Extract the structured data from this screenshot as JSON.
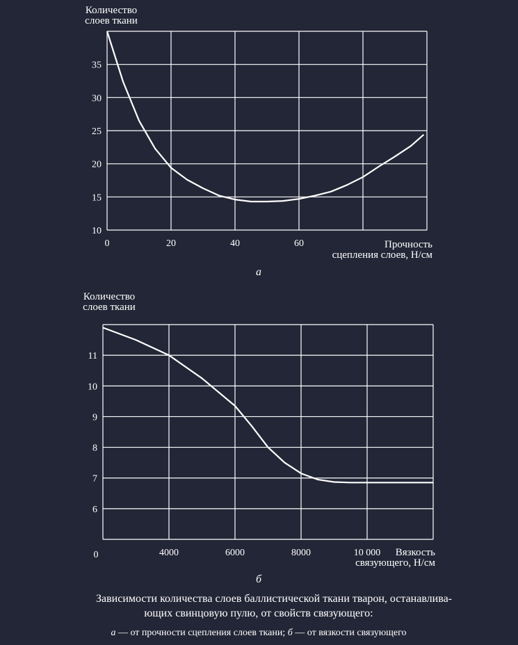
{
  "chart_data": [
    {
      "type": "line",
      "panel_label": "а",
      "ylabel": [
        "Количество",
        "слоев ткани"
      ],
      "xlabel": [
        "Прочность",
        "сцепления слоев, Н/см"
      ],
      "xlim": [
        0,
        100
      ],
      "ylim": [
        10,
        40
      ],
      "xticks": [
        0,
        20,
        40,
        60
      ],
      "xtick_labels": [
        "0",
        "20",
        "40",
        "60"
      ],
      "yticks": [
        10,
        15,
        20,
        25,
        30,
        35
      ],
      "ytick_labels": [
        "10",
        "15",
        "20",
        "25",
        "30",
        "35"
      ],
      "grid_x": [
        0,
        20,
        40,
        60,
        80,
        100
      ],
      "grid_y": [
        10,
        15,
        20,
        25,
        30,
        35,
        40
      ],
      "grid": true,
      "series": [
        {
          "x": [
            0,
            5,
            10,
            15,
            20,
            25,
            30,
            35,
            40,
            45,
            50,
            55,
            60,
            65,
            70,
            75,
            80,
            85,
            90,
            95,
            99
          ],
          "values": [
            40,
            32.4,
            26.5,
            22.3,
            19.4,
            17.6,
            16.3,
            15.2,
            14.6,
            14.3,
            14.3,
            14.4,
            14.7,
            15.2,
            15.8,
            16.8,
            18.0,
            19.6,
            21.1,
            22.7,
            24.4
          ]
        }
      ]
    },
    {
      "type": "line",
      "panel_label": "б",
      "ylabel": [
        "Количество",
        "слоев ткани"
      ],
      "xlabel": [
        "Вязкость",
        "связующего, Н/см"
      ],
      "xlim": [
        2000,
        12000
      ],
      "ylim": [
        5,
        12
      ],
      "x_origin_label": "0",
      "xticks": [
        4000,
        6000,
        8000,
        10000
      ],
      "xtick_labels": [
        "4000",
        "6000",
        "8000",
        "10 000"
      ],
      "yticks": [
        6,
        7,
        8,
        9,
        10,
        11
      ],
      "ytick_labels": [
        "6",
        "7",
        "8",
        "9",
        "10",
        "11"
      ],
      "grid_x": [
        2000,
        4000,
        6000,
        8000,
        10000,
        12000
      ],
      "grid_y": [
        5,
        6,
        7,
        8,
        9,
        10,
        11,
        12
      ],
      "grid": true,
      "series": [
        {
          "x": [
            2000,
            3000,
            4000,
            5000,
            6000,
            6500,
            7000,
            7500,
            8000,
            8500,
            9000,
            9500,
            10000,
            11000,
            12000
          ],
          "values": [
            11.9,
            11.5,
            11.0,
            10.25,
            9.35,
            8.7,
            8.0,
            7.5,
            7.15,
            6.95,
            6.87,
            6.85,
            6.85,
            6.85,
            6.85
          ]
        }
      ]
    }
  ],
  "caption": {
    "line1": "Зависимости количества слоев баллистической ткани тварон, останавлива-",
    "line2": "ющих свинцовую пулю, от свойств связующего:",
    "legend": {
      "a_letter": "а",
      "a_text": " — от прочности сцепления слоев ткани; ",
      "b_letter": "б",
      "b_text": " — от вязкости связующего"
    }
  },
  "colors": {
    "background": "#232636",
    "line": "#ffffff",
    "grid": "#ffffff"
  }
}
